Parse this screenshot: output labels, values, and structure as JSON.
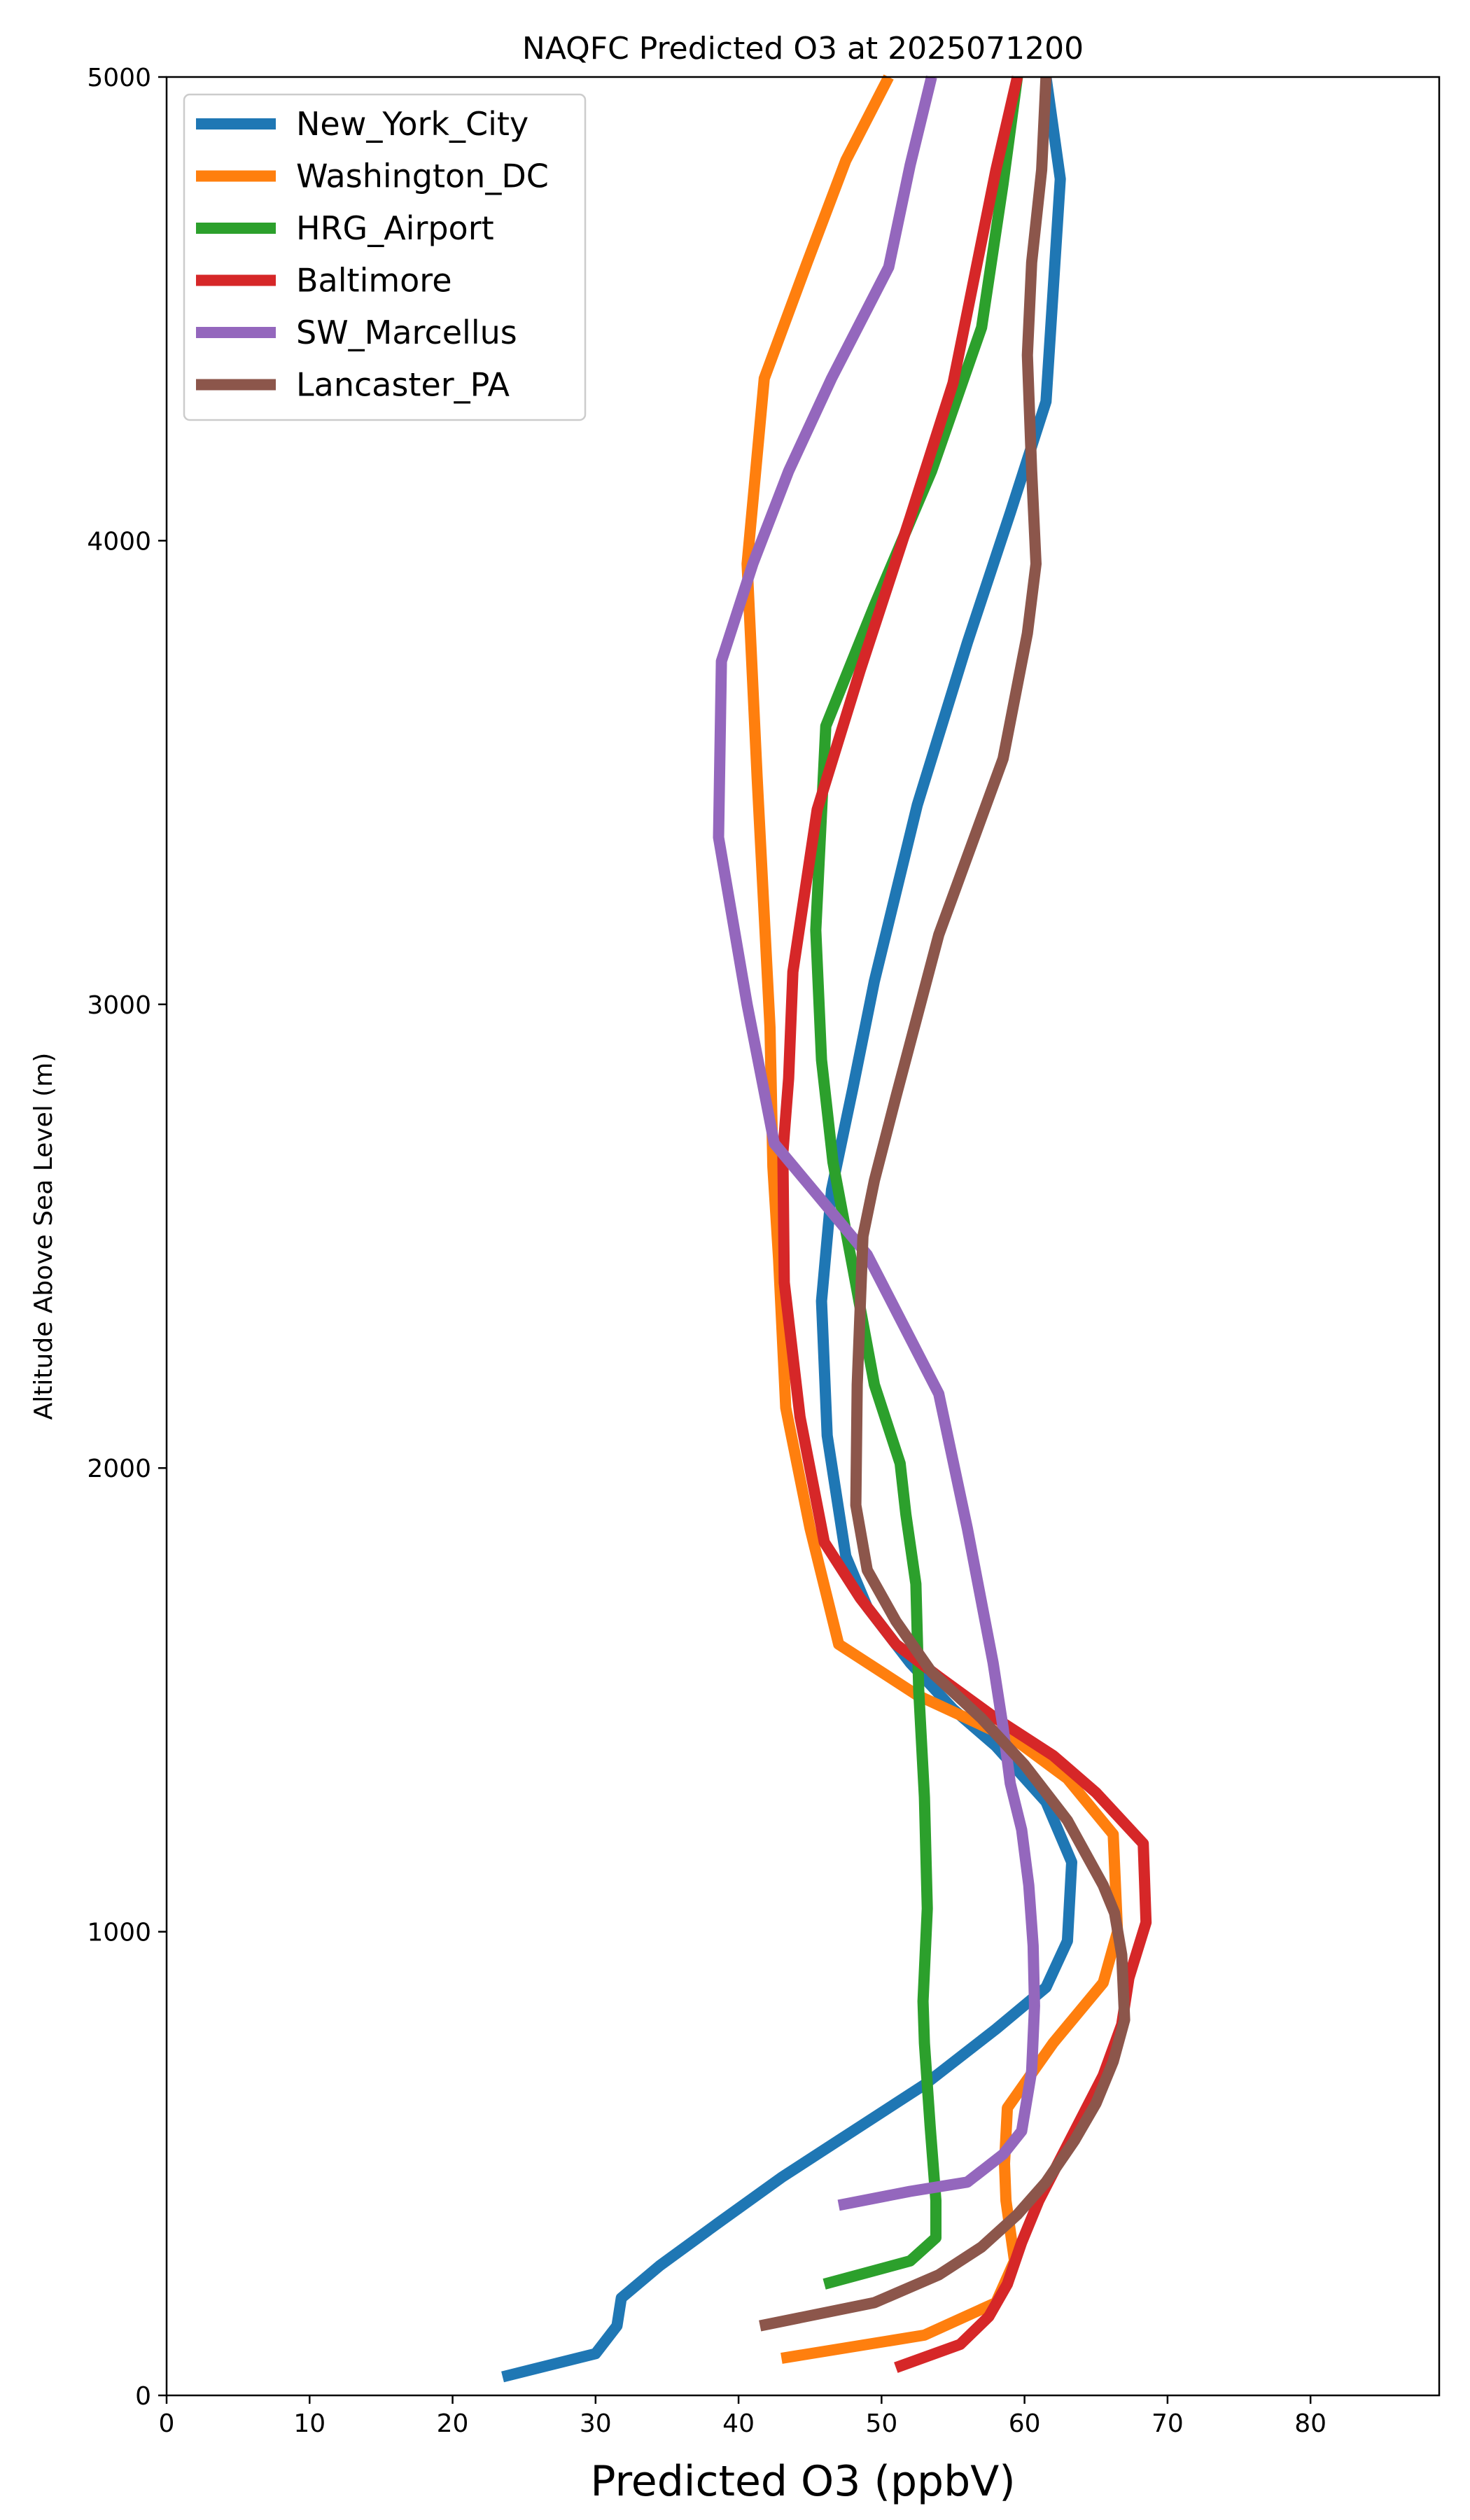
{
  "chart_data": {
    "type": "line",
    "title": "NAQFC Predicted O3 at 2025071200",
    "xlabel": "Predicted O3 (ppbV)",
    "ylabel": "Altitude Above Sea Level (m)",
    "xlim": [
      0,
      89
    ],
    "ylim": [
      0,
      5000
    ],
    "x_ticks": [
      "0",
      "10",
      "20",
      "30",
      "40",
      "50",
      "60",
      "70",
      "80"
    ],
    "y_ticks": [
      "0",
      "1000",
      "2000",
      "3000",
      "4000",
      "5000"
    ],
    "grid": false,
    "legend_position": "upper-left",
    "series": [
      {
        "name": "New_York_City",
        "color": "#1f77b4",
        "points": [
          [
            23.5,
            40
          ],
          [
            30,
            90
          ],
          [
            31.5,
            150
          ],
          [
            31.8,
            210
          ],
          [
            34.5,
            280
          ],
          [
            38.5,
            370
          ],
          [
            43,
            470
          ],
          [
            48,
            570
          ],
          [
            53,
            670
          ],
          [
            58,
            790
          ],
          [
            61.5,
            880
          ],
          [
            63,
            980
          ],
          [
            63.3,
            1150
          ],
          [
            61.5,
            1280
          ],
          [
            58,
            1400
          ],
          [
            55,
            1480
          ],
          [
            52,
            1580
          ],
          [
            49,
            1700
          ],
          [
            47.5,
            1810
          ],
          [
            46.2,
            2070
          ],
          [
            45.8,
            2360
          ],
          [
            46.5,
            2600
          ],
          [
            48,
            2820
          ],
          [
            49.5,
            3050
          ],
          [
            52.5,
            3430
          ],
          [
            56,
            3780
          ],
          [
            59,
            4060
          ],
          [
            61.5,
            4300
          ],
          [
            62.5,
            4780
          ],
          [
            61.5,
            5000
          ]
        ]
      },
      {
        "name": "Washington_DC",
        "color": "#ff7f0e",
        "points": [
          [
            43,
            80
          ],
          [
            53,
            130
          ],
          [
            58,
            200
          ],
          [
            59.3,
            290
          ],
          [
            58.7,
            420
          ],
          [
            58.6,
            500
          ],
          [
            58.8,
            620
          ],
          [
            62,
            760
          ],
          [
            65.5,
            890
          ],
          [
            66.5,
            1000
          ],
          [
            66.2,
            1210
          ],
          [
            63,
            1330
          ],
          [
            59.5,
            1410
          ],
          [
            56,
            1460
          ],
          [
            52.5,
            1510
          ],
          [
            47,
            1620
          ],
          [
            45,
            1870
          ],
          [
            43.3,
            2130
          ],
          [
            42.8,
            2450
          ],
          [
            42.4,
            2650
          ],
          [
            42.2,
            2950
          ],
          [
            41.3,
            3490
          ],
          [
            40.6,
            3950
          ],
          [
            41.8,
            4350
          ],
          [
            44.8,
            4600
          ],
          [
            47.5,
            4820
          ],
          [
            50.5,
            5000
          ]
        ]
      },
      {
        "name": "HRG_Airport",
        "color": "#2ca02c",
        "points": [
          [
            46,
            240
          ],
          [
            52,
            290
          ],
          [
            53.8,
            340
          ],
          [
            53.8,
            420
          ],
          [
            53.4,
            580
          ],
          [
            53,
            760
          ],
          [
            52.9,
            850
          ],
          [
            53.2,
            1050
          ],
          [
            53,
            1290
          ],
          [
            52.6,
            1520
          ],
          [
            52.4,
            1750
          ],
          [
            51.7,
            1900
          ],
          [
            51.3,
            2010
          ],
          [
            49.5,
            2180
          ],
          [
            48,
            2430
          ],
          [
            46.6,
            2660
          ],
          [
            45.8,
            2880
          ],
          [
            45.4,
            3160
          ],
          [
            46.1,
            3600
          ],
          [
            49.5,
            3860
          ],
          [
            53.5,
            4150
          ],
          [
            57,
            4460
          ],
          [
            58.5,
            4770
          ],
          [
            59.5,
            5000
          ]
        ]
      },
      {
        "name": "Baltimore",
        "color": "#d62728",
        "points": [
          [
            51,
            60
          ],
          [
            55.5,
            110
          ],
          [
            57.5,
            170
          ],
          [
            58.8,
            240
          ],
          [
            59.8,
            330
          ],
          [
            61,
            420
          ],
          [
            62.5,
            510
          ],
          [
            64,
            600
          ],
          [
            65.5,
            690
          ],
          [
            66.8,
            800
          ],
          [
            67.3,
            900
          ],
          [
            68.5,
            1020
          ],
          [
            68.3,
            1190
          ],
          [
            65,
            1300
          ],
          [
            62,
            1380
          ],
          [
            58,
            1460
          ],
          [
            54,
            1550
          ],
          [
            51,
            1620
          ],
          [
            48.5,
            1720
          ],
          [
            46,
            1840
          ],
          [
            44.3,
            2110
          ],
          [
            43.2,
            2400
          ],
          [
            43.1,
            2680
          ],
          [
            43.5,
            2840
          ],
          [
            43.8,
            3070
          ],
          [
            45.5,
            3420
          ],
          [
            48.5,
            3720
          ],
          [
            52,
            4050
          ],
          [
            55,
            4340
          ],
          [
            58,
            4800
          ],
          [
            59.5,
            5000
          ]
        ]
      },
      {
        "name": "SW_Marcellus",
        "color": "#9467bd",
        "points": [
          [
            47,
            410
          ],
          [
            52,
            440
          ],
          [
            56,
            460
          ],
          [
            58.5,
            520
          ],
          [
            59.8,
            570
          ],
          [
            60.5,
            700
          ],
          [
            60.7,
            840
          ],
          [
            60.6,
            970
          ],
          [
            60.3,
            1100
          ],
          [
            59.8,
            1220
          ],
          [
            59,
            1320
          ],
          [
            58.5,
            1440
          ],
          [
            57.8,
            1580
          ],
          [
            56,
            1870
          ],
          [
            54,
            2160
          ],
          [
            49,
            2460
          ],
          [
            42.5,
            2700
          ],
          [
            40.6,
            3000
          ],
          [
            38.6,
            3360
          ],
          [
            38.8,
            3740
          ],
          [
            41,
            3950
          ],
          [
            43.5,
            4150
          ],
          [
            46.5,
            4350
          ],
          [
            50.5,
            4590
          ],
          [
            52,
            4810
          ],
          [
            53.5,
            5000
          ]
        ]
      },
      {
        "name": "Lancaster_PA",
        "color": "#8c564b",
        "points": [
          [
            41.5,
            150
          ],
          [
            49.5,
            200
          ],
          [
            54,
            260
          ],
          [
            57,
            320
          ],
          [
            59.5,
            390
          ],
          [
            61.5,
            460
          ],
          [
            63.5,
            550
          ],
          [
            65,
            630
          ],
          [
            66.2,
            720
          ],
          [
            67,
            810
          ],
          [
            66.8,
            950
          ],
          [
            66.3,
            1040
          ],
          [
            65.5,
            1100
          ],
          [
            63,
            1240
          ],
          [
            60,
            1360
          ],
          [
            57,
            1460
          ],
          [
            53.5,
            1560
          ],
          [
            51,
            1670
          ],
          [
            49,
            1780
          ],
          [
            48.2,
            1920
          ],
          [
            48.3,
            2180
          ],
          [
            48.7,
            2500
          ],
          [
            49.5,
            2620
          ],
          [
            51,
            2800
          ],
          [
            54,
            3150
          ],
          [
            58.5,
            3530
          ],
          [
            60.2,
            3800
          ],
          [
            60.8,
            3950
          ],
          [
            60.5,
            4150
          ],
          [
            60.2,
            4400
          ],
          [
            60.5,
            4600
          ],
          [
            61.2,
            4800
          ],
          [
            61.5,
            5000
          ]
        ]
      }
    ]
  }
}
